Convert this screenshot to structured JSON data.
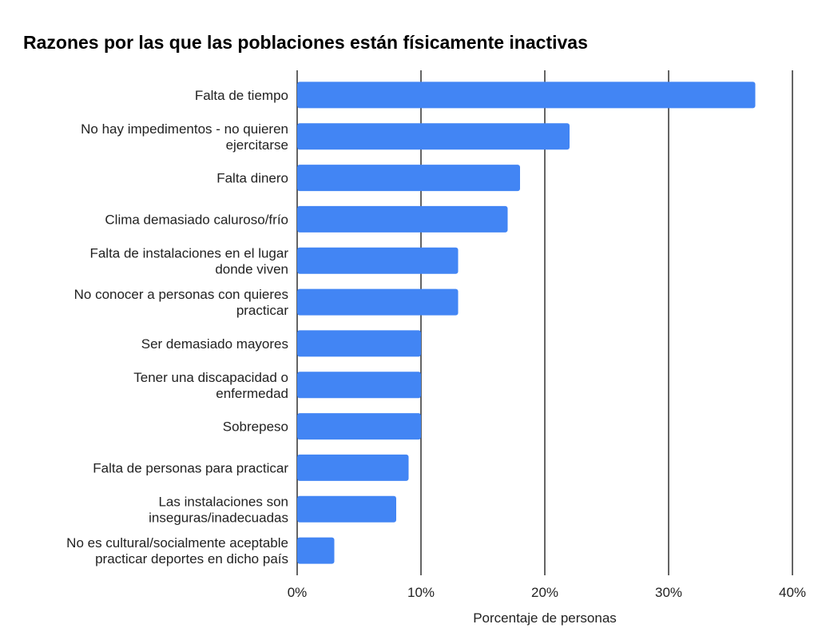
{
  "chart_data": {
    "type": "bar",
    "orientation": "horizontal",
    "title": "Razones por las que las poblaciones están físicamente inactivas",
    "xlabel": "Porcentaje de personas",
    "ylabel": "",
    "xlim": [
      0,
      40
    ],
    "grid": true,
    "color": "#4285f4",
    "x_ticks": [
      {
        "value": 0,
        "label": "0%"
      },
      {
        "value": 10,
        "label": "10%"
      },
      {
        "value": 20,
        "label": "20%"
      },
      {
        "value": 30,
        "label": "30%"
      },
      {
        "value": 40,
        "label": "40%"
      }
    ],
    "categories": [
      [
        "Falta de tiempo"
      ],
      [
        "No hay impedimentos - no quieren",
        "ejercitarse"
      ],
      [
        "Falta dinero"
      ],
      [
        "Clima demasiado caluroso/frío"
      ],
      [
        "Falta de instalaciones en el lugar",
        "donde viven"
      ],
      [
        "No conocer a personas con quieres",
        "practicar"
      ],
      [
        "Ser demasiado mayores"
      ],
      [
        "Tener una discapacidad o",
        "enfermedad"
      ],
      [
        "Sobrepeso"
      ],
      [
        "Falta de personas para practicar"
      ],
      [
        "Las instalaciones son",
        "inseguras/inadecuadas"
      ],
      [
        "No es cultural/socialmente aceptable",
        "practicar deportes en dicho país"
      ]
    ],
    "values": [
      37,
      22,
      18,
      17,
      13,
      13,
      10,
      10,
      10,
      9,
      8,
      3
    ]
  }
}
